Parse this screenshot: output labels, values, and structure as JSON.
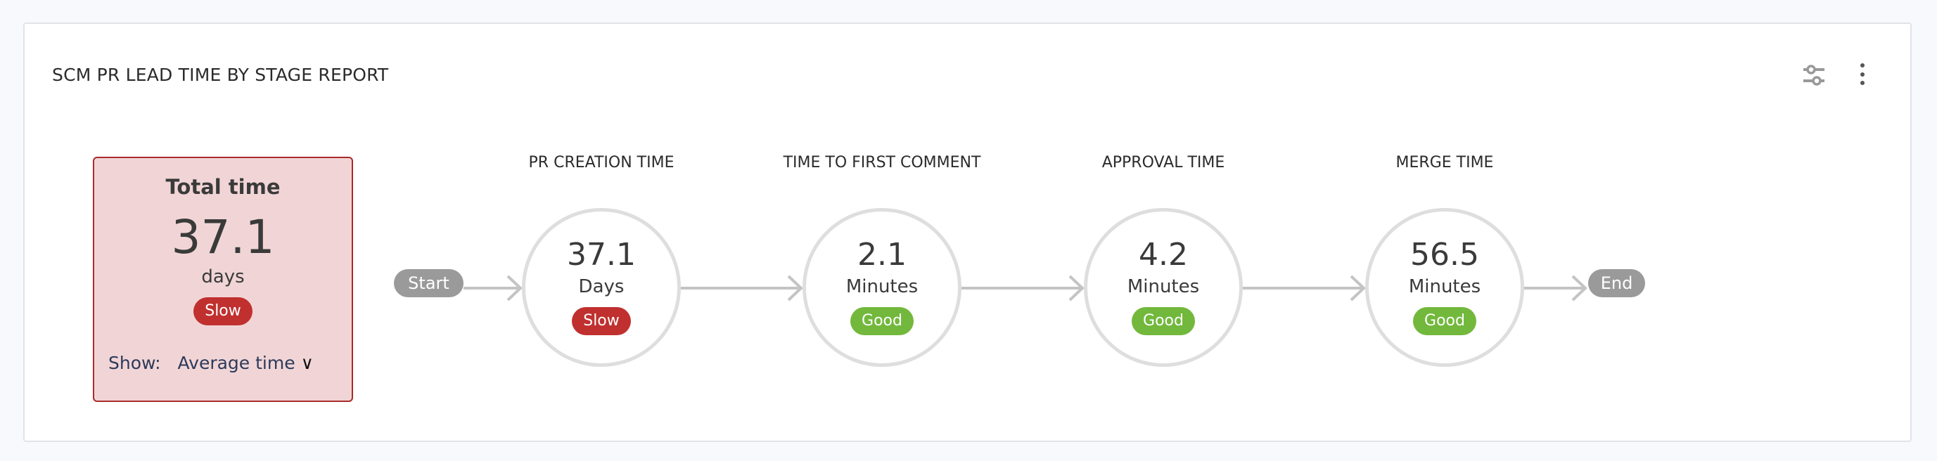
{
  "report": {
    "title": "SCM PR LEAD TIME BY STAGE REPORT"
  },
  "icons": {
    "settings": "sliders-icon",
    "more": "kebab-menu-icon"
  },
  "total": {
    "title": "Total time",
    "value": "37.1",
    "unit": "days",
    "status": "Slow",
    "show_label": "Show:",
    "show_value": "Average time"
  },
  "flow": {
    "start": "Start",
    "end": "End"
  },
  "stages": [
    {
      "label": "PR CREATION TIME",
      "value": "37.1",
      "unit": "Days",
      "status": "Slow"
    },
    {
      "label": "TIME TO FIRST COMMENT",
      "value": "2.1",
      "unit": "Minutes",
      "status": "Good"
    },
    {
      "label": "APPROVAL TIME",
      "value": "4.2",
      "unit": "Minutes",
      "status": "Good"
    },
    {
      "label": "MERGE TIME",
      "value": "56.5",
      "unit": "Minutes",
      "status": "Good"
    }
  ],
  "colors": {
    "slow": "#c0302f",
    "good": "#72b83c",
    "total_bg": "#f1d5d6",
    "total_border": "#a92b2b"
  }
}
